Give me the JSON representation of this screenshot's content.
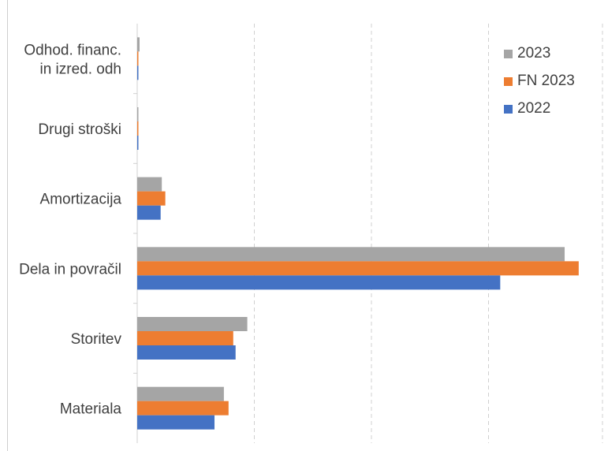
{
  "chart_data": {
    "type": "bar",
    "orientation": "horizontal",
    "categories": [
      [
        "Odhod. financ.",
        "in izred. odh"
      ],
      [
        "Drugi stroški"
      ],
      [
        "Amortizacija"
      ],
      [
        "Dela in povračil"
      ],
      [
        "Storitev"
      ],
      [
        "Materiala"
      ]
    ],
    "series": [
      {
        "name": "2023",
        "color": "#a5a5a5",
        "values": [
          0.2,
          0.1,
          2.1,
          36.5,
          9.4,
          7.4
        ]
      },
      {
        "name": "FN 2023",
        "color": "#ed7d31",
        "values": [
          0.1,
          0.1,
          2.4,
          37.7,
          8.2,
          7.8
        ]
      },
      {
        "name": "2022",
        "color": "#4472c4",
        "values": [
          0.1,
          0.1,
          2.0,
          31.0,
          8.4,
          6.6
        ]
      }
    ],
    "xlim": [
      0,
      40
    ],
    "grid": "vertical-dashed",
    "legend": "top-right",
    "title": "",
    "xlabel": "",
    "ylabel": ""
  }
}
